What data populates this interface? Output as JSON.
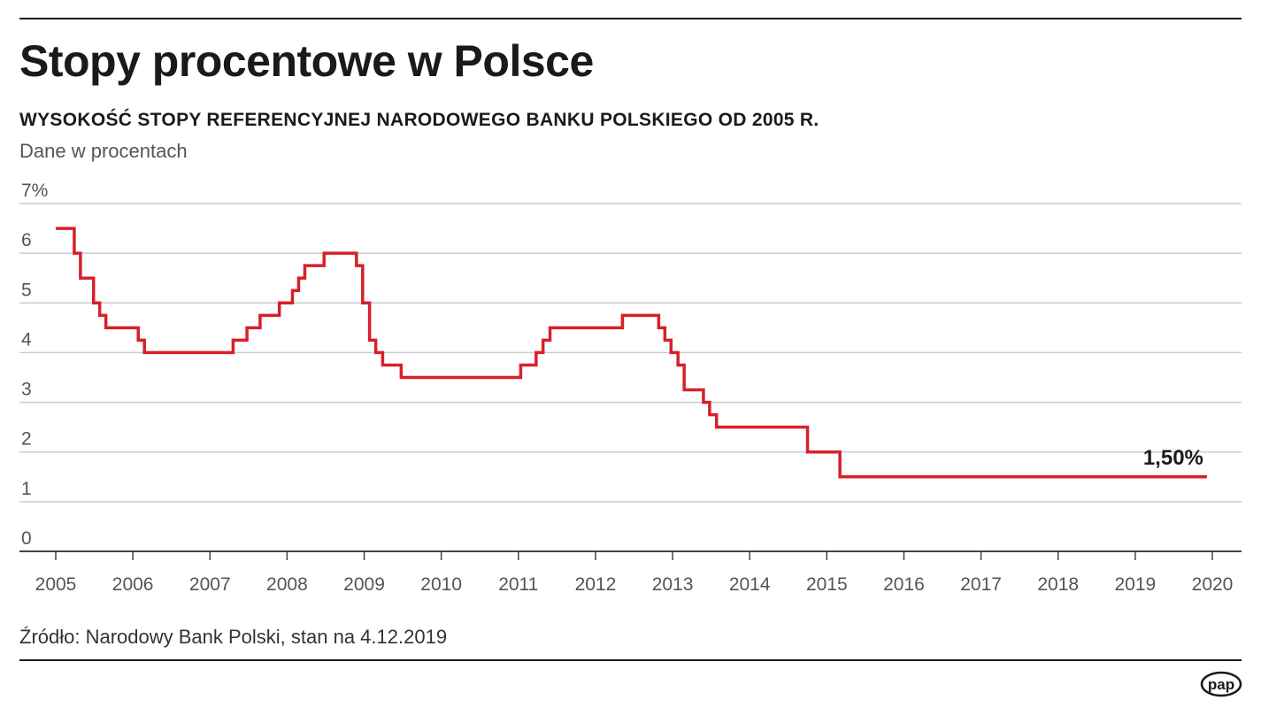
{
  "header": {
    "title": "Stopy procentowe w Polsce",
    "subtitle": "WYSOKOŚĆ STOPY REFERENCYJNEJ NARODOWEGO BANKU POLSKIEGO OD 2005 R.",
    "unit_note": "Dane w procentach"
  },
  "footer": {
    "source": "Źródło: Narodowy Bank Polski, stan na 4.12.2019",
    "logo_text": "pap"
  },
  "colors": {
    "line": "#d7202b",
    "grid": "#cccccc",
    "axis": "#444444"
  },
  "chart_data": {
    "type": "line",
    "step": true,
    "ylim": [
      0,
      7
    ],
    "xlim": [
      2005,
      2020
    ],
    "y_ticks": [
      {
        "value": 7,
        "label": "7%"
      },
      {
        "value": 6,
        "label": "6"
      },
      {
        "value": 5,
        "label": "5"
      },
      {
        "value": 4,
        "label": "4"
      },
      {
        "value": 3,
        "label": "3"
      },
      {
        "value": 2,
        "label": "2"
      },
      {
        "value": 1,
        "label": "1"
      },
      {
        "value": 0,
        "label": "0"
      }
    ],
    "x_ticks": [
      "2005",
      "2006",
      "2007",
      "2008",
      "2009",
      "2010",
      "2011",
      "2012",
      "2013",
      "2014",
      "2015",
      "2016",
      "2017",
      "2018",
      "2019",
      "2020"
    ],
    "grid": true,
    "end_label": "1,50%",
    "series": [
      {
        "x": [
          2005.0,
          2005.24,
          2005.32,
          2005.49,
          2005.57,
          2005.65,
          2006.07,
          2006.15,
          2007.3,
          2007.48,
          2007.65,
          2007.9,
          2008.07,
          2008.15,
          2008.23,
          2008.48,
          2008.9,
          2008.98,
          2009.07,
          2009.15,
          2009.24,
          2009.48,
          2011.03,
          2011.23,
          2011.32,
          2011.41,
          2012.35,
          2012.82,
          2012.9,
          2012.98,
          2013.07,
          2013.15,
          2013.23,
          2013.4,
          2013.48,
          2013.57,
          2014.75,
          2015.17,
          2019.93
        ],
        "y": [
          6.5,
          6.0,
          5.5,
          5.0,
          4.75,
          4.5,
          4.25,
          4.0,
          4.25,
          4.5,
          4.75,
          5.0,
          5.25,
          5.5,
          5.75,
          6.0,
          5.75,
          5.0,
          4.25,
          4.0,
          3.75,
          3.5,
          3.75,
          4.0,
          4.25,
          4.5,
          4.75,
          4.5,
          4.25,
          4.0,
          3.75,
          3.25,
          3.25,
          3.0,
          2.75,
          2.5,
          2.0,
          1.5,
          1.5
        ]
      }
    ]
  }
}
